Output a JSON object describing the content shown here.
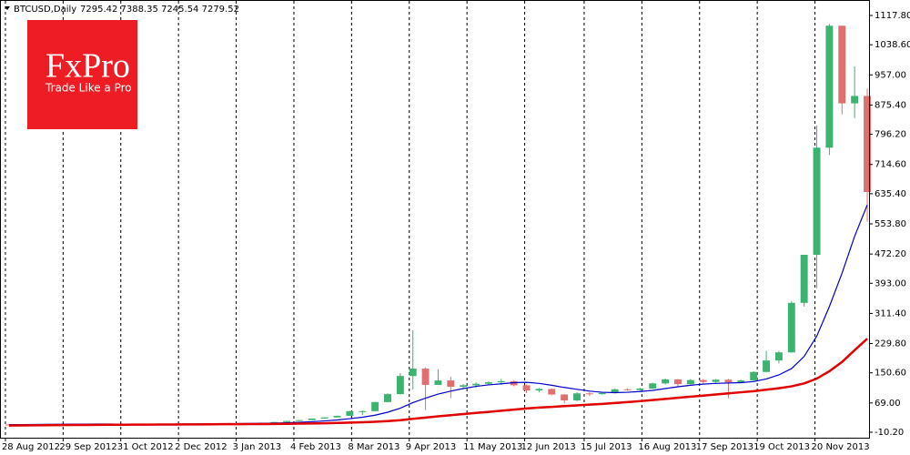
{
  "chart_data": {
    "type": "candlestick",
    "symbol": "BTCUSD,Daily",
    "quote": "7295.42 7388.35 7245.54 7279.52",
    "xlim": [
      "2012-08-25",
      "2013-12-20"
    ],
    "xticks": [
      {
        "value": "2012-08-28",
        "label": "28 Aug 2012"
      },
      {
        "value": "2012-09-29",
        "label": "29 Sep 2012"
      },
      {
        "value": "2012-10-31",
        "label": "31 Oct 2012"
      },
      {
        "value": "2012-12-02",
        "label": "2 Dec 2012"
      },
      {
        "value": "2013-01-03",
        "label": "3 Jan 2013"
      },
      {
        "value": "2013-02-04",
        "label": "4 Feb 2013"
      },
      {
        "value": "2013-03-08",
        "label": "8 Mar 2013"
      },
      {
        "value": "2013-04-09",
        "label": "9 Apr 2013"
      },
      {
        "value": "2013-05-11",
        "label": "11 May 2013"
      },
      {
        "value": "2013-06-12",
        "label": "12 Jun 2013"
      },
      {
        "value": "2013-07-15",
        "label": "15 Jul 2013"
      },
      {
        "value": "2013-08-16",
        "label": "16 Aug 2013"
      },
      {
        "value": "2013-09-17",
        "label": "17 Sep 2013"
      },
      {
        "value": "2013-10-19",
        "label": "19 Oct 2013"
      },
      {
        "value": "2013-11-20",
        "label": "20 Nov 2013"
      }
    ],
    "xgrid": true,
    "ylim": [
      -25,
      1140
    ],
    "yticks": [
      {
        "value": 1117.8,
        "label": "1117.80"
      },
      {
        "value": 1038.6,
        "label": "1038.60"
      },
      {
        "value": 957,
        "label": "957.00"
      },
      {
        "value": 875.4,
        "label": "875.40"
      },
      {
        "value": 796.2,
        "label": "796.20"
      },
      {
        "value": 714.6,
        "label": "714.60"
      },
      {
        "value": 635.4,
        "label": "635.40"
      },
      {
        "value": 553.8,
        "label": "553.80"
      },
      {
        "value": 472.2,
        "label": "472.20"
      },
      {
        "value": 393,
        "label": "393.00"
      },
      {
        "value": 311.4,
        "label": "311.40"
      },
      {
        "value": 229.8,
        "label": "229.80"
      },
      {
        "value": 150.6,
        "label": "150.60"
      },
      {
        "value": 69,
        "label": "69.00"
      },
      {
        "value": -10.2,
        "label": "-10.20"
      }
    ],
    "up_color": "#3cb371",
    "down_color": "#e07070",
    "x": [
      "2012-08-30",
      "2012-09-06",
      "2012-09-13",
      "2012-09-20",
      "2012-09-27",
      "2012-10-04",
      "2012-10-11",
      "2012-10-18",
      "2012-10-25",
      "2012-11-01",
      "2012-11-08",
      "2012-11-15",
      "2012-11-22",
      "2012-11-29",
      "2012-12-06",
      "2012-12-13",
      "2012-12-20",
      "2012-12-27",
      "2013-01-03",
      "2013-01-10",
      "2013-01-17",
      "2013-01-24",
      "2013-01-31",
      "2013-02-07",
      "2013-02-14",
      "2013-02-21",
      "2013-02-28",
      "2013-03-07",
      "2013-03-14",
      "2013-03-21",
      "2013-03-28",
      "2013-04-04",
      "2013-04-11",
      "2013-04-18",
      "2013-04-25",
      "2013-05-02",
      "2013-05-09",
      "2013-05-16",
      "2013-05-23",
      "2013-05-30",
      "2013-06-06",
      "2013-06-13",
      "2013-06-20",
      "2013-06-27",
      "2013-07-04",
      "2013-07-11",
      "2013-07-18",
      "2013-07-25",
      "2013-08-01",
      "2013-08-08",
      "2013-08-15",
      "2013-08-22",
      "2013-08-29",
      "2013-09-05",
      "2013-09-12",
      "2013-09-19",
      "2013-09-26",
      "2013-10-03",
      "2013-10-10",
      "2013-10-17",
      "2013-10-24",
      "2013-10-31",
      "2013-11-07",
      "2013-11-14",
      "2013-11-21",
      "2013-11-28",
      "2013-12-05",
      "2013-12-12",
      "2013-12-19"
    ],
    "open": [
      10.9,
      10.4,
      11.0,
      11.7,
      12.2,
      12.4,
      12.0,
      11.8,
      11.7,
      10.9,
      10.9,
      10.9,
      11.7,
      12.3,
      12.6,
      13.3,
      13.5,
      13.4,
      13.5,
      13.6,
      14.2,
      15.7,
      17.4,
      20.4,
      22.6,
      26.9,
      30.0,
      34.3,
      46.9,
      46.9,
      71.5,
      93.0,
      142.0,
      162.0,
      118.0,
      130.0,
      113.0,
      117.0,
      121.0,
      125.0,
      128.0,
      117.0,
      103.0,
      107.0,
      92.0,
      76.0,
      95.0,
      93.0,
      96.0,
      106.0,
      104.0,
      108.0,
      122.0,
      133.0,
      120.0,
      131.0,
      126.0,
      132.0,
      125.0,
      130.0,
      153.0,
      184.0,
      206.0,
      340.0,
      470.0,
      760.0,
      1090.0,
      880.0,
      900.0
    ],
    "high": [
      11.1,
      11.1,
      11.8,
      12.6,
      12.5,
      12.6,
      12.1,
      11.9,
      11.8,
      11.0,
      11.0,
      11.9,
      12.4,
      12.8,
      13.6,
      13.7,
      13.6,
      13.6,
      13.8,
      14.4,
      16.0,
      17.8,
      20.6,
      22.8,
      27.0,
      30.2,
      34.5,
      47.5,
      48.5,
      72.0,
      95.0,
      150.0,
      266.0,
      165.0,
      160.0,
      140.0,
      120.0,
      125.0,
      128.0,
      134.0,
      130.0,
      119.0,
      110.0,
      108.0,
      93.0,
      98.0,
      98.0,
      98.0,
      108.0,
      108.0,
      110.0,
      124.0,
      135.0,
      134.0,
      134.0,
      134.0,
      134.0,
      134.0,
      132.0,
      155.0,
      210.0,
      210.0,
      345.0,
      470.0,
      820.0,
      1095.0,
      1090.0,
      980.0,
      920.0
    ],
    "low": [
      10.3,
      10.2,
      10.9,
      11.6,
      12.0,
      11.9,
      11.6,
      11.4,
      10.9,
      10.6,
      10.7,
      10.8,
      11.6,
      12.0,
      12.5,
      13.2,
      13.1,
      13.3,
      13.2,
      13.5,
      14.1,
      15.5,
      17.2,
      20.1,
      22.4,
      26.5,
      29.8,
      34.0,
      36.0,
      46.5,
      71.0,
      92.0,
      105.0,
      50.0,
      118.0,
      82.0,
      108.0,
      110.0,
      119.0,
      118.0,
      114.0,
      96.0,
      98.0,
      90.0,
      68.0,
      74.0,
      88.0,
      92.0,
      95.0,
      102.0,
      102.0,
      107.0,
      119.0,
      114.0,
      119.0,
      122.0,
      124.0,
      82.0,
      124.0,
      129.0,
      152.0,
      176.0,
      205.0,
      330.0,
      380.0,
      740.0,
      850.0,
      840.0,
      560.0
    ],
    "close": [
      10.4,
      11.0,
      11.7,
      12.2,
      12.4,
      12.0,
      11.8,
      11.7,
      10.9,
      10.9,
      10.9,
      11.7,
      12.3,
      12.6,
      13.3,
      13.5,
      13.4,
      13.5,
      13.6,
      14.2,
      15.7,
      17.4,
      20.4,
      22.6,
      26.9,
      30.0,
      34.3,
      46.9,
      46.9,
      71.5,
      93.0,
      142.0,
      162.0,
      118.0,
      130.0,
      113.0,
      117.0,
      121.0,
      125.0,
      128.0,
      117.0,
      103.0,
      107.0,
      92.0,
      76.0,
      95.0,
      93.0,
      96.0,
      106.0,
      104.0,
      108.0,
      122.0,
      133.0,
      120.0,
      131.0,
      126.0,
      132.0,
      125.0,
      130.0,
      153.0,
      184.0,
      206.0,
      340.0,
      470.0,
      760.0,
      1090.0,
      880.0,
      900.0,
      640.0
    ],
    "series": [
      {
        "color": "#0000c8",
        "values": [
          10.5,
          10.6,
          10.8,
          11.0,
          11.3,
          11.6,
          11.8,
          11.9,
          11.9,
          11.8,
          11.6,
          11.5,
          11.5,
          11.6,
          11.9,
          12.2,
          12.6,
          12.9,
          13.2,
          13.4,
          13.8,
          14.4,
          15.3,
          16.5,
          18.2,
          20.4,
          23.0,
          26.5,
          30.5,
          36.0,
          44.0,
          55.0,
          70.0,
          82.0,
          93.0,
          101.0,
          108.0,
          114.0,
          118.0,
          121.0,
          124.0,
          125.0,
          122.0,
          117.0,
          111.0,
          106.0,
          101.0,
          98.0,
          97.0,
          98.0,
          100.0,
          103.0,
          108.0,
          113.0,
          117.0,
          120.0,
          122.0,
          123.0,
          124.0,
          127.0,
          134.0,
          145.0,
          162.0,
          195.0,
          250.0,
          330.0,
          420.0,
          520.0,
          605.0
        ]
      },
      {
        "color": "#e00000",
        "values": [
          8.0,
          8.3,
          8.6,
          8.9,
          9.1,
          9.4,
          9.6,
          9.8,
          10.0,
          10.2,
          10.3,
          10.4,
          10.6,
          10.7,
          10.9,
          11.1,
          11.3,
          11.5,
          11.7,
          11.9,
          12.1,
          12.4,
          12.7,
          13.1,
          13.6,
          14.2,
          14.9,
          15.8,
          16.8,
          18.2,
          20.0,
          22.5,
          26.0,
          29.5,
          33.0,
          36.0,
          39.0,
          42.0,
          45.0,
          48.0,
          51.0,
          54.0,
          56.5,
          58.5,
          60.5,
          62.5,
          64.5,
          66.5,
          69.0,
          71.5,
          74.0,
          77.0,
          80.0,
          83.0,
          86.0,
          89.0,
          92.0,
          95.0,
          98.0,
          101.0,
          105.0,
          109.0,
          114.0,
          122.0,
          135.0,
          155.0,
          180.0,
          212.0,
          243.0
        ]
      }
    ]
  },
  "logo": {
    "name": "FxPro",
    "tagline": "Trade Like a Pro"
  }
}
